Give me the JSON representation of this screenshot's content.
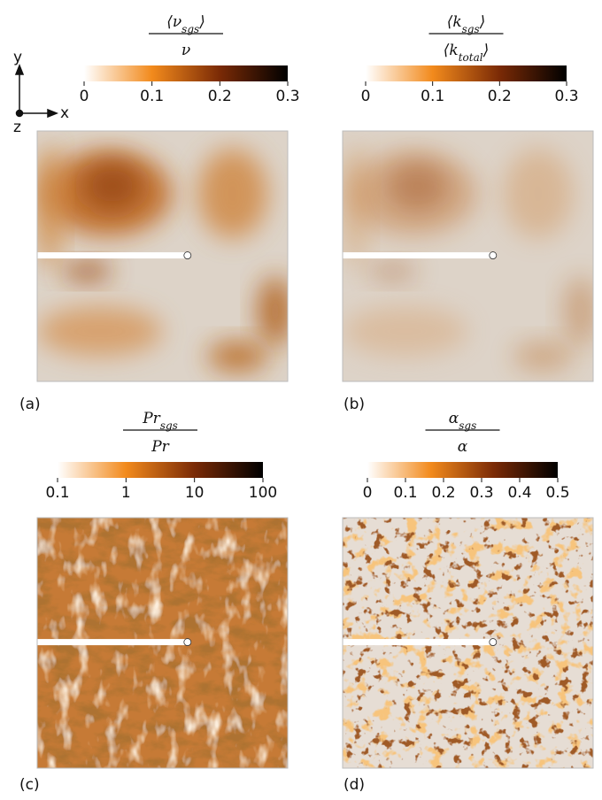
{
  "axes_triad": {
    "y": "y",
    "x": "x",
    "z": "z"
  },
  "colormap": [
    "#ffffff",
    "#f28a1c",
    "#7a2a06",
    "#000000"
  ],
  "panels": [
    {
      "label": "(a)",
      "title": {
        "num": "⟨ν",
        "num_sub": "sgs",
        "num_end": "⟩",
        "den": "ν"
      },
      "clim": [
        0,
        0.3
      ],
      "cticks": [
        0,
        0.1,
        0.2,
        0.3
      ],
      "log": false
    },
    {
      "label": "(b)",
      "title": {
        "num": "⟨k",
        "num_sub": "sgs",
        "num_end": "⟩",
        "den": "⟨k",
        "den_sub": "total",
        "den_end": "⟩"
      },
      "clim": [
        0,
        0.3
      ],
      "cticks": [
        0,
        0.1,
        0.2,
        0.3
      ],
      "log": false
    },
    {
      "label": "(c)",
      "title": {
        "num": "Pr",
        "num_sub": "sgs",
        "den": "Pr"
      },
      "clim": [
        0.1,
        100
      ],
      "cticks": [
        0.1,
        1,
        10,
        100
      ],
      "log": true
    },
    {
      "label": "(d)",
      "title": {
        "num": "α",
        "num_sub": "sgs",
        "den": "α"
      },
      "clim": [
        0,
        0.5
      ],
      "cticks": [
        0,
        0.1,
        0.2,
        0.3,
        0.4,
        0.5
      ],
      "log": false
    }
  ]
}
